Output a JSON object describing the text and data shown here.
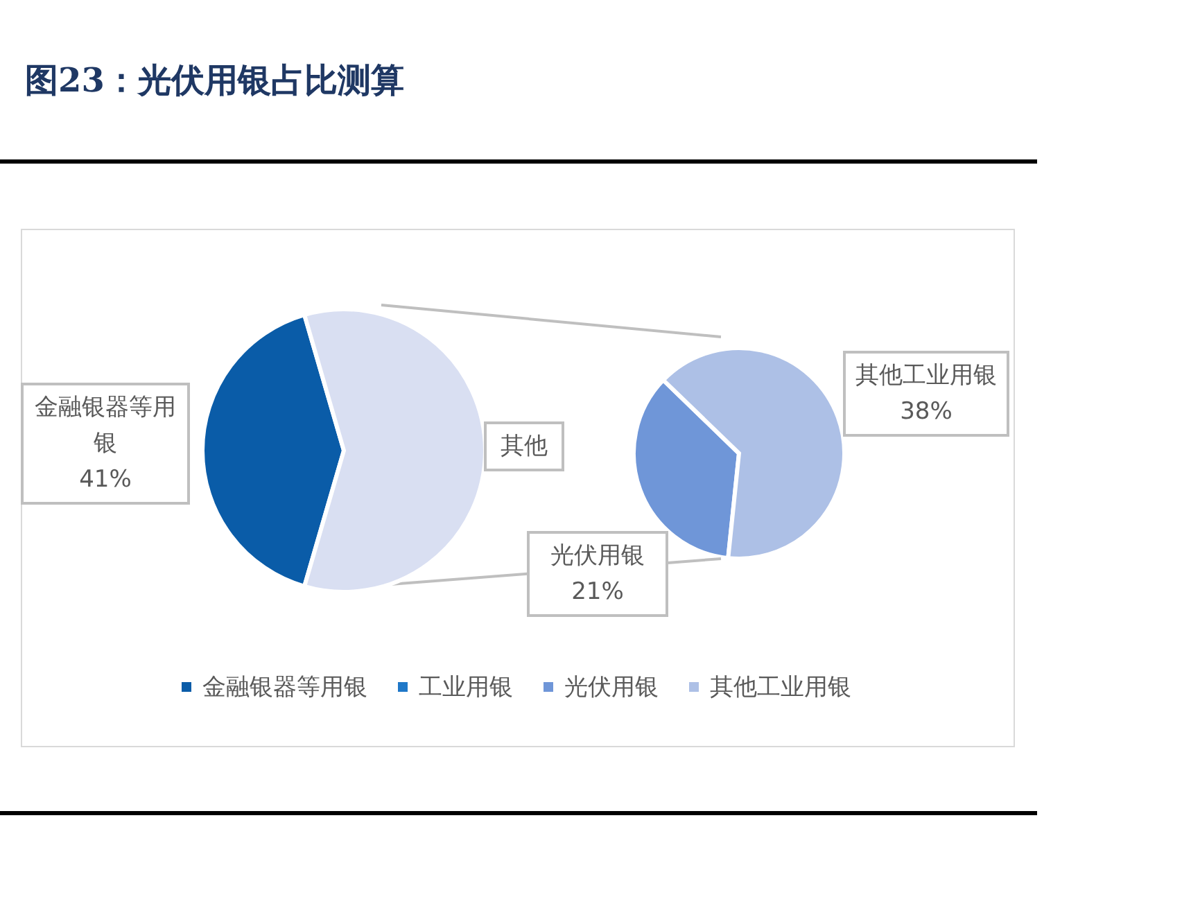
{
  "chart_data": [
    {
      "type": "pie",
      "title": "图23：光伏用银占比测算",
      "categories": [
        "金融银器等用银",
        "工业用银",
        "其他"
      ],
      "values": [
        41,
        null,
        59
      ],
      "value_labels": [
        "41%",
        null,
        null
      ],
      "colors": [
        "#0a5ca8",
        "#1f78c8",
        "#d9dff2"
      ],
      "legend": "bottom"
    },
    {
      "type": "pie",
      "categories": [
        "光伏用银",
        "其他工业用银"
      ],
      "values": [
        21,
        38
      ],
      "value_labels": [
        "21%",
        "38%"
      ],
      "colors": [
        "#6f96d8",
        "#adc0e6"
      ],
      "legend": "bottom"
    }
  ]
}
